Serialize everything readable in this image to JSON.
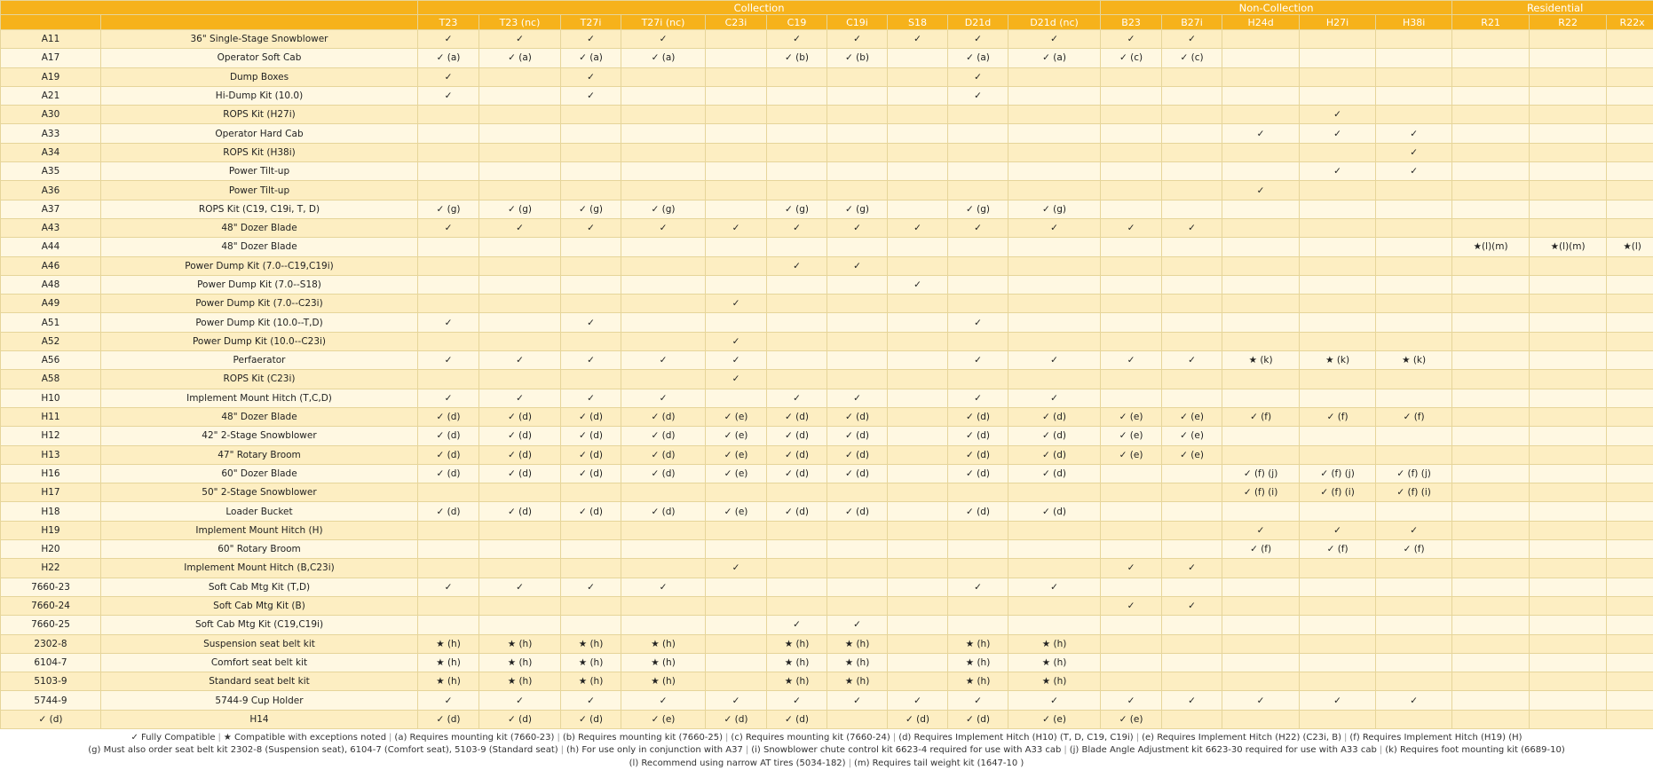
{
  "groups": [
    {
      "label": "",
      "span": 2
    },
    {
      "label": "Collection",
      "span": 10
    },
    {
      "label": "Non-Collection",
      "span": 5
    },
    {
      "label": "Residential",
      "span": 3
    }
  ],
  "models": [
    "T23",
    "T23 (nc)",
    "T27i",
    "T27i (nc)",
    "C23i",
    "C19",
    "C19i",
    "S18",
    "D21d",
    "D21d (nc)",
    "B23",
    "B27i",
    "H24d",
    "H27i",
    "H38i",
    "R21",
    "R22",
    "R22x"
  ],
  "rows": [
    {
      "code": "A11",
      "name": "36\" Single-Stage Snowblower",
      "cells": [
        "✓",
        "✓",
        "✓",
        "✓",
        "",
        "✓",
        "✓",
        "✓",
        "✓",
        "✓",
        "✓",
        "✓",
        "",
        "",
        "",
        "",
        "",
        ""
      ]
    },
    {
      "code": "A17",
      "name": "Operator Soft Cab",
      "cells": [
        "✓ (a)",
        "✓ (a)",
        "✓ (a)",
        "✓ (a)",
        "",
        "✓ (b)",
        "✓ (b)",
        "",
        "✓ (a)",
        "✓ (a)",
        "✓ (c)",
        "✓ (c)",
        "",
        "",
        "",
        "",
        "",
        ""
      ]
    },
    {
      "code": "A19",
      "name": "Dump Boxes",
      "cells": [
        "✓",
        "",
        "✓",
        "",
        "",
        "",
        "",
        "",
        "✓",
        "",
        "",
        "",
        "",
        "",
        "",
        "",
        "",
        ""
      ]
    },
    {
      "code": "A21",
      "name": "Hi-Dump Kit (10.0)",
      "cells": [
        "✓",
        "",
        "✓",
        "",
        "",
        "",
        "",
        "",
        "✓",
        "",
        "",
        "",
        "",
        "",
        "",
        "",
        "",
        ""
      ]
    },
    {
      "code": "A30",
      "name": "ROPS Kit (H27i)",
      "cells": [
        "",
        "",
        "",
        "",
        "",
        "",
        "",
        "",
        "",
        "",
        "",
        "",
        "",
        "✓",
        "",
        "",
        "",
        ""
      ]
    },
    {
      "code": "A33",
      "name": "Operator Hard Cab",
      "cells": [
        "",
        "",
        "",
        "",
        "",
        "",
        "",
        "",
        "",
        "",
        "",
        "",
        "✓",
        "✓",
        "✓",
        "",
        "",
        ""
      ]
    },
    {
      "code": "A34",
      "name": "ROPS Kit (H38i)",
      "cells": [
        "",
        "",
        "",
        "",
        "",
        "",
        "",
        "",
        "",
        "",
        "",
        "",
        "",
        "",
        "✓",
        "",
        "",
        ""
      ]
    },
    {
      "code": "A35",
      "name": "Power Tilt-up",
      "cells": [
        "",
        "",
        "",
        "",
        "",
        "",
        "",
        "",
        "",
        "",
        "",
        "",
        "",
        "✓",
        "✓",
        "",
        "",
        ""
      ]
    },
    {
      "code": "A36",
      "name": "Power Tilt-up",
      "cells": [
        "",
        "",
        "",
        "",
        "",
        "",
        "",
        "",
        "",
        "",
        "",
        "",
        "✓",
        "",
        "",
        "",
        "",
        ""
      ]
    },
    {
      "code": "A37",
      "name": "ROPS Kit (C19, C19i, T, D)",
      "cells": [
        "✓ (g)",
        "✓ (g)",
        "✓ (g)",
        "✓ (g)",
        "",
        "✓ (g)",
        "✓ (g)",
        "",
        "✓ (g)",
        "✓ (g)",
        "",
        "",
        "",
        "",
        "",
        "",
        "",
        ""
      ]
    },
    {
      "code": "A43",
      "name": "48\" Dozer Blade",
      "cells": [
        "✓",
        "✓",
        "✓",
        "✓",
        "✓",
        "✓",
        "✓",
        "✓",
        "✓",
        "✓",
        "✓",
        "✓",
        "",
        "",
        "",
        "",
        "",
        ""
      ]
    },
    {
      "code": "A44",
      "name": "48\" Dozer Blade",
      "cells": [
        "",
        "",
        "",
        "",
        "",
        "",
        "",
        "",
        "",
        "",
        "",
        "",
        "",
        "",
        "",
        "★(l)(m)",
        "★(l)(m)",
        "★(l)"
      ]
    },
    {
      "code": "A46",
      "name": "Power Dump Kit (7.0--C19,C19i)",
      "cells": [
        "",
        "",
        "",
        "",
        "",
        "✓",
        "✓",
        "",
        "",
        "",
        "",
        "",
        "",
        "",
        "",
        "",
        "",
        ""
      ]
    },
    {
      "code": "A48",
      "name": "Power Dump Kit (7.0--S18)",
      "cells": [
        "",
        "",
        "",
        "",
        "",
        "",
        "",
        "✓",
        "",
        "",
        "",
        "",
        "",
        "",
        "",
        "",
        "",
        ""
      ]
    },
    {
      "code": "A49",
      "name": "Power Dump Kit (7.0--C23i)",
      "cells": [
        "",
        "",
        "",
        "",
        "✓",
        "",
        "",
        "",
        "",
        "",
        "",
        "",
        "",
        "",
        "",
        "",
        "",
        ""
      ]
    },
    {
      "code": "A51",
      "name": "Power Dump Kit (10.0--T,D)",
      "cells": [
        "✓",
        "",
        "✓",
        "",
        "",
        "",
        "",
        "",
        "✓",
        "",
        "",
        "",
        "",
        "",
        "",
        "",
        "",
        ""
      ]
    },
    {
      "code": "A52",
      "name": "Power Dump Kit (10.0--C23i)",
      "cells": [
        "",
        "",
        "",
        "",
        "✓",
        "",
        "",
        "",
        "",
        "",
        "",
        "",
        "",
        "",
        "",
        "",
        "",
        ""
      ]
    },
    {
      "code": "A56",
      "name": "Perfaerator",
      "cells": [
        "✓",
        "✓",
        "✓",
        "✓",
        "✓",
        "",
        "",
        "",
        "✓",
        "✓",
        "✓",
        "✓",
        "★ (k)",
        "★ (k)",
        "★ (k)",
        "",
        "",
        ""
      ]
    },
    {
      "code": "A58",
      "name": "ROPS Kit (C23i)",
      "cells": [
        "",
        "",
        "",
        "",
        "✓",
        "",
        "",
        "",
        "",
        "",
        "",
        "",
        "",
        "",
        "",
        "",
        "",
        ""
      ]
    },
    {
      "code": "H10",
      "name": "Implement Mount Hitch (T,C,D)",
      "cells": [
        "✓",
        "✓",
        "✓",
        "✓",
        "",
        "✓",
        "✓",
        "",
        "✓",
        "✓",
        "",
        "",
        "",
        "",
        "",
        "",
        "",
        ""
      ]
    },
    {
      "code": "H11",
      "name": "48\" Dozer Blade",
      "cells": [
        "✓ (d)",
        "✓ (d)",
        "✓ (d)",
        "✓ (d)",
        "✓ (e)",
        "✓ (d)",
        "✓ (d)",
        "",
        "✓ (d)",
        "✓ (d)",
        "✓ (e)",
        "✓ (e)",
        "✓ (f)",
        "✓ (f)",
        "✓ (f)",
        "",
        "",
        ""
      ]
    },
    {
      "code": "H12",
      "name": "42\" 2-Stage Snowblower",
      "cells": [
        "✓ (d)",
        "✓ (d)",
        "✓ (d)",
        "✓ (d)",
        "✓ (e)",
        "✓ (d)",
        "✓ (d)",
        "",
        "✓ (d)",
        "✓ (d)",
        "✓ (e)",
        "✓ (e)",
        "",
        "",
        "",
        "",
        "",
        ""
      ]
    },
    {
      "code": "H13",
      "name": "47\" Rotary Broom",
      "cells": [
        "✓ (d)",
        "✓ (d)",
        "✓ (d)",
        "✓ (d)",
        "✓ (e)",
        "✓ (d)",
        "✓ (d)",
        "",
        "✓ (d)",
        "✓ (d)",
        "✓ (e)",
        "✓ (e)",
        "",
        "",
        "",
        "",
        "",
        ""
      ]
    },
    {
      "code": "H16",
      "name": "60\" Dozer Blade",
      "cells": [
        "✓ (d)",
        "✓ (d)",
        "✓ (d)",
        "✓ (d)",
        "✓ (e)",
        "✓ (d)",
        "✓ (d)",
        "",
        "✓ (d)",
        "✓ (d)",
        "",
        "",
        "✓ (f) (j)",
        "✓ (f) (j)",
        "✓ (f) (j)",
        "",
        "",
        ""
      ]
    },
    {
      "code": "H17",
      "name": "50\" 2-Stage Snowblower",
      "cells": [
        "",
        "",
        "",
        "",
        "",
        "",
        "",
        "",
        "",
        "",
        "",
        "",
        "✓ (f) (i)",
        "✓ (f) (i)",
        "✓ (f) (i)",
        "",
        "",
        ""
      ]
    },
    {
      "code": "H18",
      "name": "Loader Bucket",
      "cells": [
        "✓ (d)",
        "✓ (d)",
        "✓ (d)",
        "✓ (d)",
        "✓ (e)",
        "✓ (d)",
        "✓ (d)",
        "",
        "✓ (d)",
        "✓ (d)",
        "",
        "",
        "",
        "",
        "",
        "",
        "",
        ""
      ]
    },
    {
      "code": "H19",
      "name": "Implement Mount Hitch (H)",
      "cells": [
        "",
        "",
        "",
        "",
        "",
        "",
        "",
        "",
        "",
        "",
        "",
        "",
        "✓",
        "✓",
        "✓",
        "",
        "",
        ""
      ]
    },
    {
      "code": "H20",
      "name": "60\" Rotary Broom",
      "cells": [
        "",
        "",
        "",
        "",
        "",
        "",
        "",
        "",
        "",
        "",
        "",
        "",
        "✓ (f)",
        "✓ (f)",
        "✓ (f)",
        "",
        "",
        ""
      ]
    },
    {
      "code": "H22",
      "name": "Implement Mount Hitch (B,C23i)",
      "cells": [
        "",
        "",
        "",
        "",
        "✓",
        "",
        "",
        "",
        "",
        "",
        "✓",
        "✓",
        "",
        "",
        "",
        "",
        "",
        ""
      ]
    },
    {
      "code": "7660-23",
      "name": "Soft Cab Mtg Kit (T,D)",
      "cells": [
        "✓",
        "✓",
        "✓",
        "✓",
        "",
        "",
        "",
        "",
        "✓",
        "✓",
        "",
        "",
        "",
        "",
        "",
        "",
        "",
        ""
      ]
    },
    {
      "code": "7660-24",
      "name": "Soft Cab Mtg Kit (B)",
      "cells": [
        "",
        "",
        "",
        "",
        "",
        "",
        "",
        "",
        "",
        "",
        "✓",
        "✓",
        "",
        "",
        "",
        "",
        "",
        ""
      ]
    },
    {
      "code": "7660-25",
      "name": "Soft Cab Mtg Kit (C19,C19i)",
      "cells": [
        "",
        "",
        "",
        "",
        "",
        "✓",
        "✓",
        "",
        "",
        "",
        "",
        "",
        "",
        "",
        "",
        "",
        "",
        ""
      ]
    },
    {
      "code": "2302-8",
      "name": "Suspension seat belt kit",
      "cells": [
        "★ (h)",
        "★ (h)",
        "★ (h)",
        "★ (h)",
        "",
        "★ (h)",
        "★ (h)",
        "",
        "★ (h)",
        "★ (h)",
        "",
        "",
        "",
        "",
        "",
        "",
        "",
        ""
      ]
    },
    {
      "code": "6104-7",
      "name": "Comfort seat belt kit",
      "cells": [
        "★ (h)",
        "★ (h)",
        "★ (h)",
        "★ (h)",
        "",
        "★ (h)",
        "★ (h)",
        "",
        "★ (h)",
        "★ (h)",
        "",
        "",
        "",
        "",
        "",
        "",
        "",
        ""
      ]
    },
    {
      "code": "5103-9",
      "name": "Standard seat belt kit",
      "cells": [
        "★ (h)",
        "★ (h)",
        "★ (h)",
        "★ (h)",
        "",
        "★ (h)",
        "★ (h)",
        "",
        "★ (h)",
        "★ (h)",
        "",
        "",
        "",
        "",
        "",
        "",
        "",
        ""
      ]
    },
    {
      "code": "5744-9",
      "name": "5744-9 Cup Holder",
      "cells": [
        "✓",
        "✓",
        "✓",
        "✓",
        "✓",
        "✓",
        "✓",
        "✓",
        "✓",
        "✓",
        "✓",
        "✓",
        "✓",
        "✓",
        "✓",
        "",
        "",
        ""
      ]
    },
    {
      "code": "✓ (d)",
      "name": "H14",
      "cells": [
        "✓ (d)",
        "✓ (d)",
        "✓ (d)",
        "✓ (e)",
        "✓ (d)",
        "✓ (d)",
        "",
        "✓ (d)",
        "✓ (d)",
        "✓ (e)",
        "✓ (e)",
        "",
        "",
        "",
        "",
        "",
        "",
        ""
      ]
    }
  ],
  "legend": [
    [
      "✓ Fully Compatible",
      "★ Compatible with exceptions noted",
      "(a) Requires mounting kit (7660-23)",
      "(b) Requires mounting kit (7660-25)",
      "(c) Requires mounting kit (7660-24)",
      "(d) Requires Implement Hitch (H10) (T, D, C19, C19i)",
      "(e) Requires Implement Hitch (H22) (C23i, B)",
      "(f) Requires Implement Hitch (H19) (H)"
    ],
    [
      "(g) Must also order seat belt kit 2302-8 (Suspension seat), 6104-7 (Comfort seat), 5103-9 (Standard seat)",
      "(h) For use only in conjunction with A37",
      "(i) Snowblower chute control kit 6623-4 required for use with A33 cab",
      "(j) Blade Angle Adjustment kit 6623-30 required for use with A33 cab",
      "(k) Requires foot mounting kit (6689-10)"
    ],
    [
      "(l) Recommend using narrow AT tires (5034-182)",
      "(m) Requires tail weight kit (1647-10 )"
    ]
  ],
  "colors": {
    "header": "#f6b21b",
    "row_odd": "#fdeec2",
    "row_even": "#fff8e2",
    "grid": "#e6d59a"
  }
}
